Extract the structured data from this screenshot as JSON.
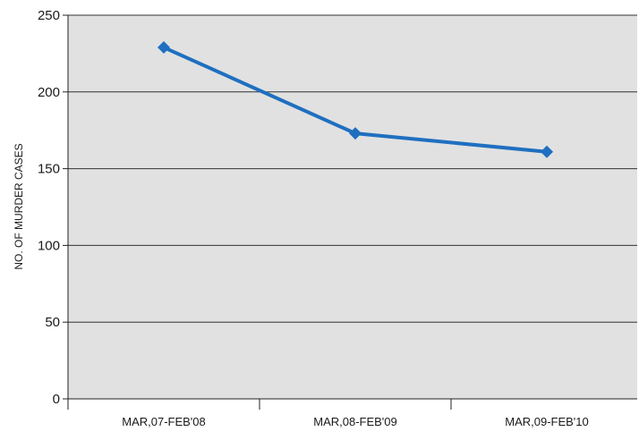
{
  "chart_data": {
    "type": "line",
    "title": "",
    "xlabel": "",
    "ylabel": "NO. OF MURDER CASES",
    "categories": [
      "MAR,07-FEB'08",
      "MAR,08-FEB'09",
      "MAR,09-FEB'10"
    ],
    "series": [
      {
        "values": [
          229,
          173,
          161
        ]
      }
    ],
    "ylim": [
      0,
      250
    ],
    "yticks": [
      0,
      50,
      100,
      150,
      200,
      250
    ],
    "grid": true,
    "legend": "none",
    "colors": {
      "line": "#1f6fc0",
      "plot_background": "#e1e1e1",
      "gridline": "#333333"
    }
  }
}
